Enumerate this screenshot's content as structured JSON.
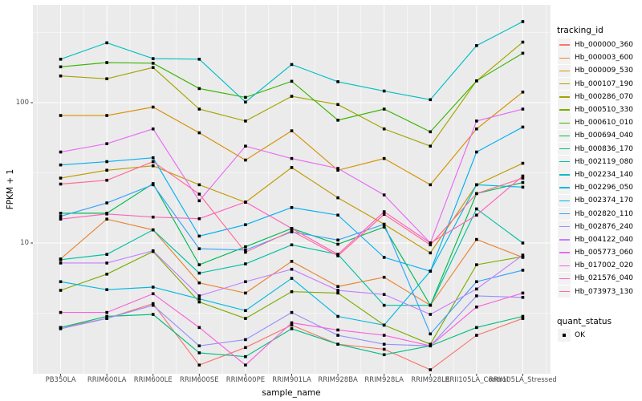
{
  "style": {
    "panel_bg": "#EBEBEB",
    "grid_color": "#FFFFFF",
    "axis_text_color": "#4D4D4D",
    "tick_mark_color": "#333333",
    "legend_key_bg": "#F2F2F2",
    "point_color": "#000000",
    "background": "#FFFFFF"
  },
  "chart_data": {
    "type": "line",
    "title": "",
    "xlabel": "sample_name",
    "ylabel": "FPKM + 1",
    "y_scale": "log10",
    "grid": true,
    "legend_position": "right",
    "y_ticks": [
      100,
      10
    ],
    "y_minor_gridlines": [
      316.2,
      31.62,
      3.162
    ],
    "ylim": [
      1.15,
      500
    ],
    "categories": [
      "PB350LA",
      "RRIM600LA",
      "RRIM600LE",
      "RRIM600SE",
      "RRIM600PE",
      "RRIM901LA",
      "RRIM928BA",
      "RRIM928LA",
      "RRIM928LE",
      "RRII105LA_Control",
      "RRII105LA_Stressed"
    ],
    "series": [
      {
        "name": "Hb_000000_360",
        "color": "#F8766D",
        "values": [
          2.5,
          2.9,
          3.7,
          1.35,
          1.8,
          2.6,
          1.9,
          1.75,
          1.25,
          2.2,
          2.9
        ]
      },
      {
        "name": "Hb_000003_600",
        "color": "#EA8331",
        "values": [
          7.7,
          14.8,
          12.4,
          5.2,
          4.4,
          7.4,
          4.9,
          5.7,
          3.6,
          10.6,
          7.9
        ]
      },
      {
        "name": "Hb_000009_530",
        "color": "#D89000",
        "values": [
          81,
          81,
          93,
          61,
          39,
          63,
          33,
          40,
          26,
          65,
          119
        ]
      },
      {
        "name": "Hb_000107_190",
        "color": "#C09B00",
        "values": [
          29,
          33,
          35.5,
          26,
          19.5,
          34.5,
          21,
          13.6,
          8.5,
          26,
          37
        ]
      },
      {
        "name": "Hb_000286_070",
        "color": "#A3A500",
        "values": [
          155,
          148,
          178,
          90,
          74,
          111,
          97,
          65,
          49,
          143,
          270
        ]
      },
      {
        "name": "Hb_000510_330",
        "color": "#7CAE00",
        "values": [
          4.6,
          6,
          8.7,
          3.8,
          2.9,
          4.5,
          4.4,
          2.6,
          1.9,
          7,
          8
        ]
      },
      {
        "name": "Hb_000610_010",
        "color": "#39B600",
        "values": [
          180,
          193,
          191,
          126,
          109,
          142,
          75,
          90,
          62,
          143,
          225
        ]
      },
      {
        "name": "Hb_000694_040",
        "color": "#00BB4E",
        "values": [
          16.3,
          16.3,
          26.5,
          7,
          9.4,
          12.7,
          9.8,
          13,
          3.6,
          22.5,
          27
        ]
      },
      {
        "name": "Hb_000836_170",
        "color": "#00BF7D",
        "values": [
          2.5,
          3,
          3.1,
          1.65,
          1.55,
          2.45,
          1.9,
          1.6,
          1.85,
          2.5,
          3
        ]
      },
      {
        "name": "Hb_002119_080",
        "color": "#00C1A3",
        "values": [
          7.6,
          8.3,
          12.4,
          6.1,
          7.1,
          9.7,
          8.3,
          3.6,
          3.6,
          17.5,
          10
        ]
      },
      {
        "name": "Hb_002234_140",
        "color": "#00BFC4",
        "values": [
          204,
          267,
          206,
          204,
          101,
          187,
          141,
          121,
          105,
          255,
          378
        ]
      },
      {
        "name": "Hb_002296_050",
        "color": "#00BAE0",
        "values": [
          5.3,
          4.65,
          4.85,
          4,
          3.3,
          5.6,
          3,
          2.6,
          6.3,
          26,
          25
        ]
      },
      {
        "name": "Hb_002374_170",
        "color": "#00B0F6",
        "values": [
          36,
          38,
          40.5,
          11.2,
          13.5,
          17.9,
          15.8,
          7.9,
          6.3,
          44.5,
          67
        ]
      },
      {
        "name": "Hb_002820_110",
        "color": "#35A2FF",
        "values": [
          15.5,
          19.3,
          26,
          9.1,
          8.9,
          12,
          10.5,
          13.6,
          2.25,
          5.3,
          6.4
        ]
      },
      {
        "name": "Hb_002876_240",
        "color": "#9590FF",
        "values": [
          2.45,
          2.9,
          3.6,
          1.85,
          2.05,
          3.2,
          2.2,
          1.9,
          1.85,
          4.2,
          4.1
        ]
      },
      {
        "name": "Hb_004122_040",
        "color": "#C77CFF",
        "values": [
          7.2,
          7.2,
          8.8,
          4.2,
          5.3,
          6.5,
          4.6,
          4.3,
          3.1,
          4.7,
          8.2
        ]
      },
      {
        "name": "Hb_005773_060",
        "color": "#E76BF3",
        "values": [
          44.5,
          51,
          65,
          20,
          49,
          40,
          34,
          22,
          10,
          74,
          90
        ]
      },
      {
        "name": "Hb_017002_020",
        "color": "#FA62DB",
        "values": [
          3.2,
          3.2,
          4.35,
          2.5,
          1.35,
          2.7,
          2.4,
          2.2,
          1.85,
          3.5,
          4.4
        ]
      },
      {
        "name": "Hb_021576_040",
        "color": "#FF62BC",
        "values": [
          14.8,
          16.1,
          15.3,
          14.9,
          19.6,
          12.7,
          8.3,
          16.7,
          10,
          15.8,
          30
        ]
      },
      {
        "name": "Hb_073973_130",
        "color": "#FF6A98",
        "values": [
          26.3,
          28,
          38,
          22.3,
          8.6,
          12.2,
          8.1,
          16,
          9.7,
          22.5,
          29
        ]
      }
    ],
    "points": {
      "shape": "filled-square",
      "color": "#000000"
    },
    "legend": {
      "title": "tracking_id"
    },
    "legend2": {
      "title": "quant_status",
      "items": [
        {
          "label": "OK",
          "marker": "filled-square",
          "color": "#000000"
        }
      ]
    }
  }
}
